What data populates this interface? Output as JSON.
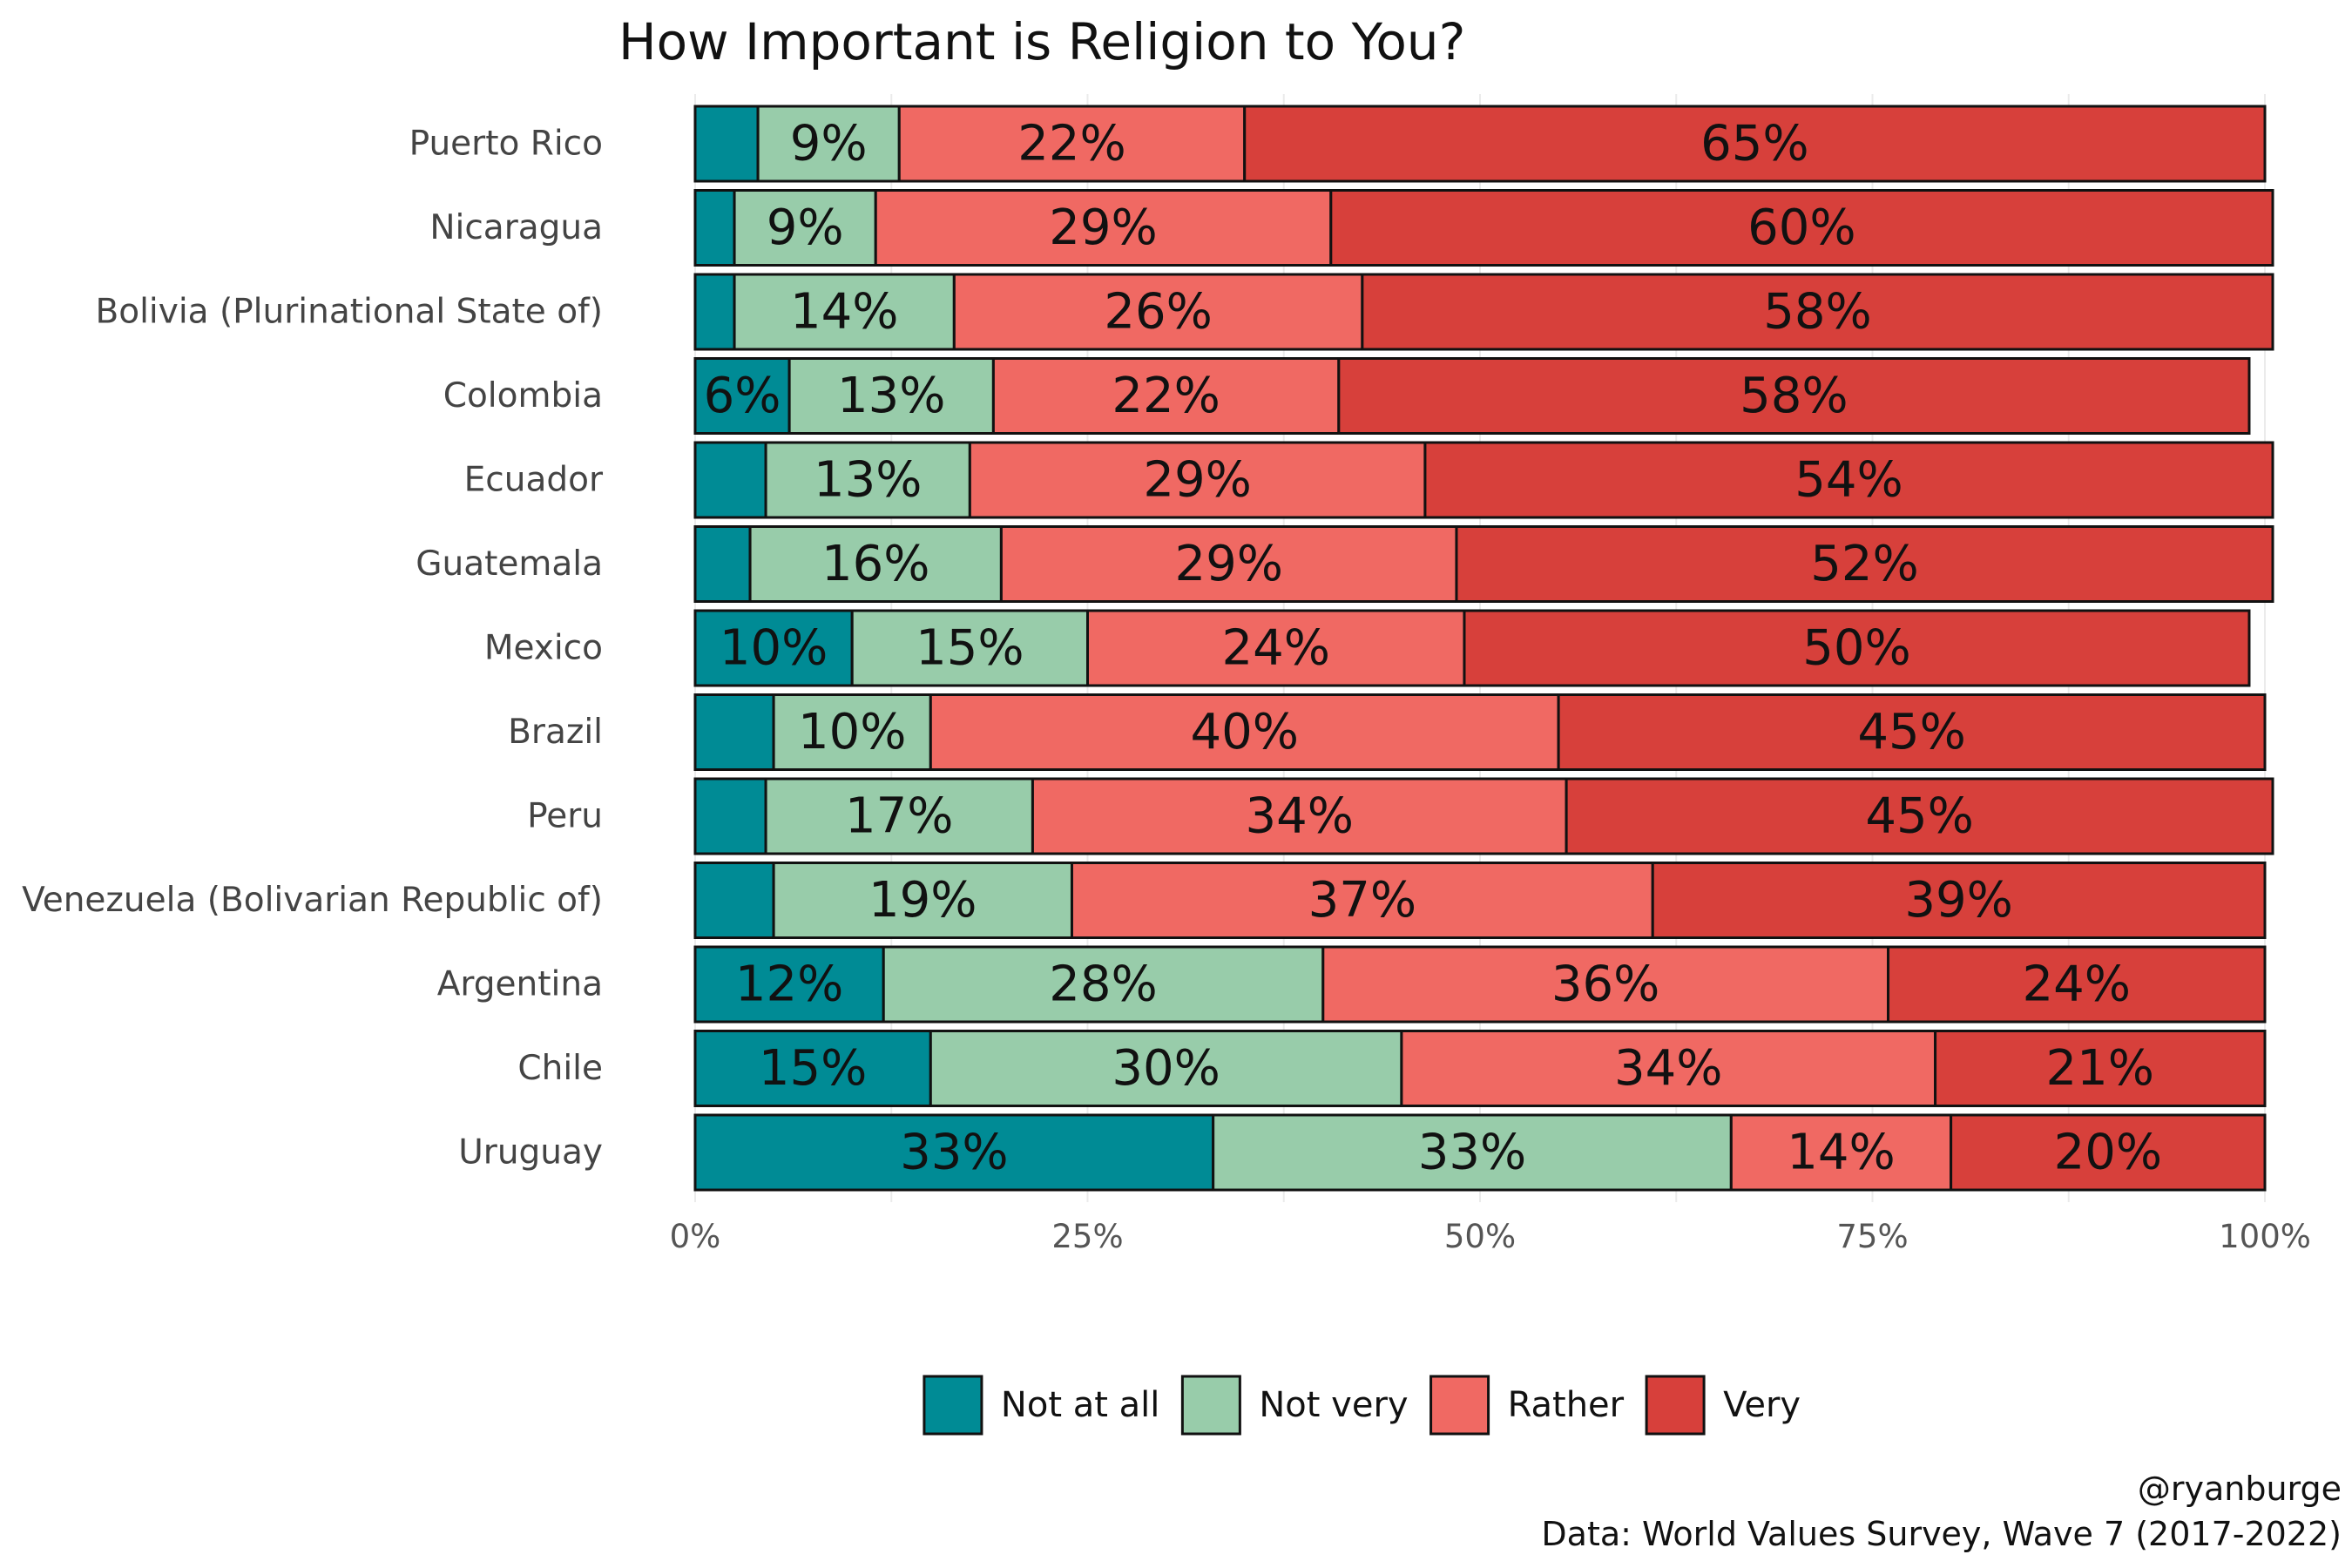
{
  "chart_data": {
    "type": "bar",
    "orientation": "horizontal",
    "stacked": true,
    "title": "How Important is Religion to You?",
    "categories": [
      "Puerto Rico",
      "Nicaragua",
      "Bolivia (Plurinational State of)",
      "Colombia",
      "Ecuador",
      "Guatemala",
      "Mexico",
      "Brazil",
      "Peru",
      "Venezuela (Bolivarian Republic of)",
      "Argentina",
      "Chile",
      "Uruguay"
    ],
    "series": [
      {
        "name": "Not at all",
        "color": "#008b95",
        "values": [
          4,
          2.5,
          2.5,
          6,
          4.5,
          3.5,
          10,
          5,
          4.5,
          5,
          12,
          15,
          33
        ],
        "labels": [
          "",
          "",
          "",
          "6%",
          "",
          "",
          "10%",
          "",
          "",
          "",
          "12%",
          "15%",
          "33%"
        ]
      },
      {
        "name": "Not very",
        "color": "#98ccaa",
        "values": [
          9,
          9,
          14,
          13,
          13,
          16,
          15,
          10,
          17,
          19,
          28,
          30,
          33
        ],
        "labels": [
          "9%",
          "9%",
          "14%",
          "13%",
          "13%",
          "16%",
          "15%",
          "10%",
          "17%",
          "19%",
          "28%",
          "30%",
          "33%"
        ]
      },
      {
        "name": "Rather",
        "color": "#f06963",
        "values": [
          22,
          29,
          26,
          22,
          29,
          29,
          24,
          40,
          34,
          37,
          36,
          34,
          14
        ],
        "labels": [
          "22%",
          "29%",
          "26%",
          "22%",
          "29%",
          "29%",
          "24%",
          "40%",
          "34%",
          "37%",
          "36%",
          "34%",
          "14%"
        ]
      },
      {
        "name": "Very",
        "color": "#d7403b",
        "values": [
          65,
          60,
          58,
          58,
          54,
          52,
          50,
          45,
          45,
          39,
          24,
          21,
          20
        ],
        "labels": [
          "65%",
          "60%",
          "58%",
          "58%",
          "54%",
          "52%",
          "50%",
          "45%",
          "45%",
          "39%",
          "24%",
          "21%",
          "20%"
        ]
      }
    ],
    "xlim": [
      0,
      100
    ],
    "xticks": [
      "0%",
      "25%",
      "50%",
      "75%",
      "100%"
    ],
    "grid": true,
    "legend_position": "bottom",
    "caption": [
      "@ryanburge",
      "Data: World Values Survey, Wave 7 (2017-2022)"
    ]
  }
}
